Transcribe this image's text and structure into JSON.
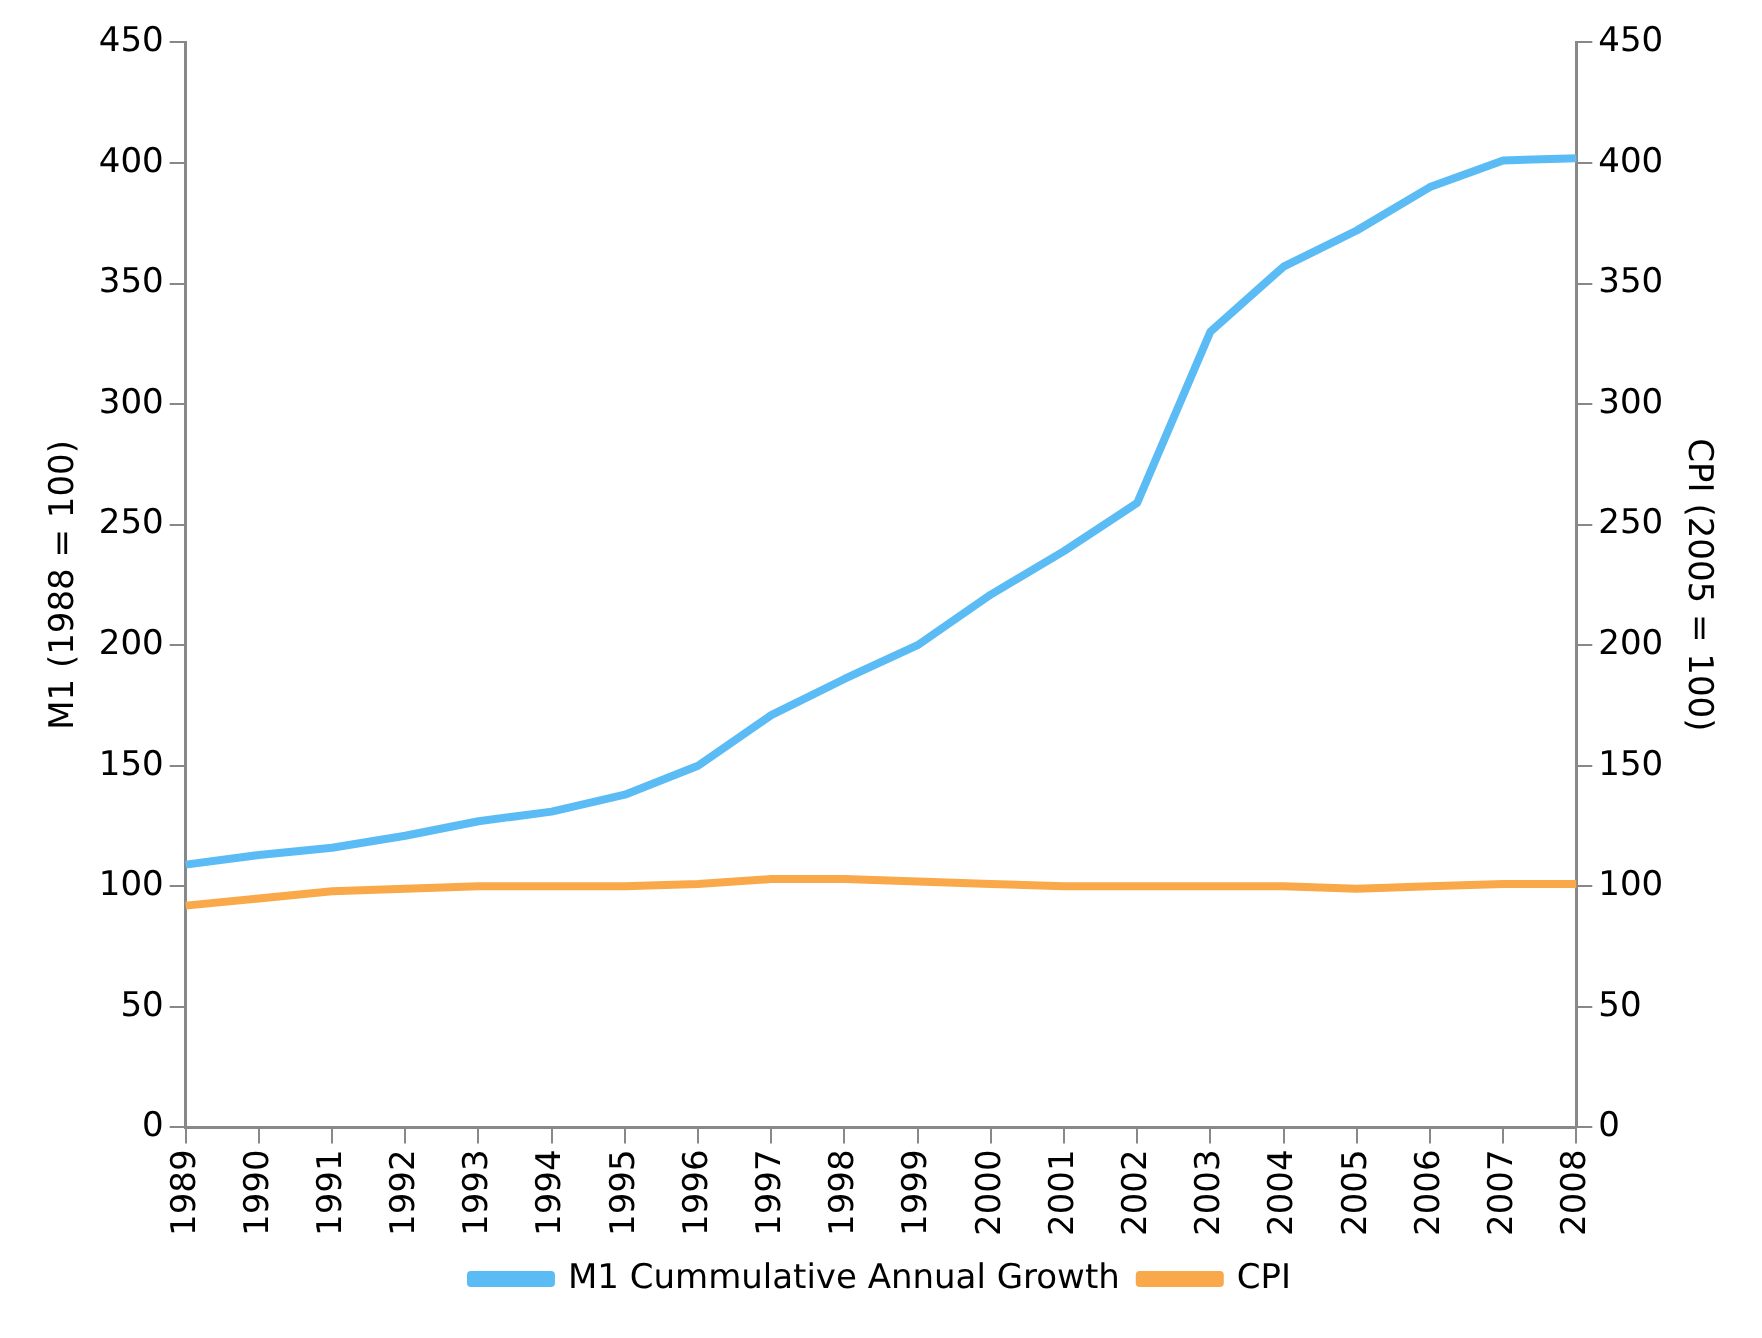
{
  "chart_data": {
    "type": "line",
    "ylabel": "M1 (1988 = 100)",
    "y2label": "CPI (2005 = 100)",
    "categories": [
      "1989",
      "1990",
      "1991",
      "1992",
      "1993",
      "1994",
      "1995",
      "1996",
      "1997",
      "1998",
      "1999",
      "2000",
      "2001",
      "2002",
      "2003",
      "2004",
      "2005",
      "2006",
      "2007",
      "2008"
    ],
    "series": [
      {
        "name": "M1 Cummulative Annual Growth",
        "color": "#5bbcf5",
        "values": [
          109,
          113,
          116,
          121,
          127,
          131,
          138,
          150,
          171,
          186,
          200,
          221,
          239,
          259,
          330,
          357,
          372,
          390,
          401,
          402
        ]
      },
      {
        "name": "CPI",
        "color": "#f9a84a",
        "axis": "y2",
        "values": [
          92,
          95,
          98,
          99,
          100,
          100,
          100,
          101,
          103,
          103,
          102,
          101,
          100,
          100,
          100,
          100,
          99,
          100,
          101,
          101
        ]
      }
    ],
    "ylim": [
      0,
      450
    ],
    "yticks": [
      0,
      50,
      100,
      150,
      200,
      250,
      300,
      350,
      400,
      450
    ],
    "y2lim": [
      0,
      450
    ],
    "y2ticks": [
      0,
      50,
      100,
      150,
      200,
      250,
      300,
      350,
      400,
      450
    ],
    "grid": false,
    "legend": "bottom",
    "marker": "none",
    "line_style": "solid"
  }
}
